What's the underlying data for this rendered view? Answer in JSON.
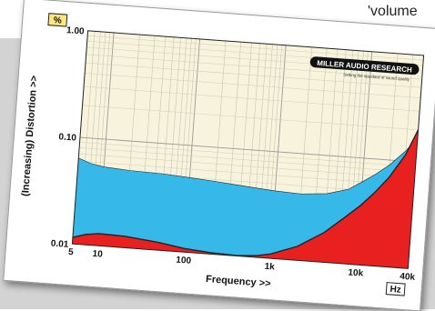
{
  "caption_snippet": "'volume",
  "logo": {
    "brand": "MILLER AUDIO RESEARCH",
    "tagline": "Setting the standard of sound quality"
  },
  "chart_data": {
    "type": "area",
    "title": "",
    "xlabel": "Frequency >>",
    "ylabel": "(Increasing) Distortion >>",
    "x_unit": "Hz",
    "y_unit": "%",
    "x_scale": "log",
    "y_scale": "log",
    "xlim": [
      5,
      40000
    ],
    "ylim": [
      0.01,
      1.0
    ],
    "x_ticks": [
      {
        "value": 5,
        "label": "5"
      },
      {
        "value": 10,
        "label": "10"
      },
      {
        "value": 100,
        "label": "100"
      },
      {
        "value": 1000,
        "label": "1k"
      },
      {
        "value": 10000,
        "label": "10k"
      },
      {
        "value": 40000,
        "label": "40k"
      }
    ],
    "y_ticks": [
      {
        "value": 0.01,
        "label": "0.01"
      },
      {
        "value": 0.1,
        "label": "0.10"
      },
      {
        "value": 1.0,
        "label": "1.00"
      }
    ],
    "grid": true,
    "series": [
      {
        "color": "#36b8e8",
        "x": [
          5,
          7,
          10,
          20,
          50,
          100,
          200,
          500,
          1000,
          2000,
          4000,
          7000,
          10000,
          14000,
          20000,
          30000,
          40000
        ],
        "y": [
          0.064,
          0.058,
          0.055,
          0.053,
          0.052,
          0.05,
          0.048,
          0.045,
          0.043,
          0.042,
          0.044,
          0.05,
          0.06,
          0.072,
          0.09,
          0.125,
          0.17
        ]
      },
      {
        "color": "#e82020",
        "x": [
          5,
          7,
          10,
          20,
          50,
          100,
          200,
          400,
          700,
          1000,
          2000,
          4000,
          7000,
          10000,
          14000,
          20000,
          30000,
          40000
        ],
        "y": [
          0.0115,
          0.0125,
          0.013,
          0.0128,
          0.0118,
          0.0108,
          0.0103,
          0.0101,
          0.0104,
          0.011,
          0.0135,
          0.019,
          0.028,
          0.036,
          0.048,
          0.068,
          0.115,
          0.2
        ]
      }
    ]
  }
}
